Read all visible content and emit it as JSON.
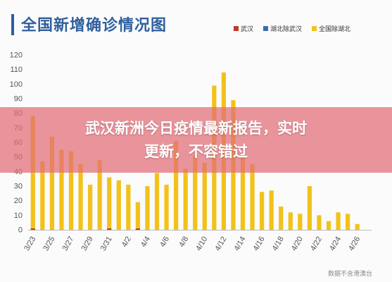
{
  "chart_title": "全国新增确诊情况图",
  "legend": [
    {
      "label": "武汉",
      "color": "#c0392b"
    },
    {
      "label": "湖北除武汉",
      "color": "#3a6fb0"
    },
    {
      "label": "全国除湖北",
      "color": "#f2c21b"
    }
  ],
  "banner": {
    "line1": "武汉新洲今日疫情最新报告，实时",
    "line2": "更新，不容错过"
  },
  "source": "数据不含港澳台",
  "chart_data": {
    "type": "bar",
    "stacked": true,
    "ylim": [
      0,
      120
    ],
    "yticks": [
      0,
      10,
      20,
      30,
      40,
      50,
      60,
      70,
      80,
      90,
      100,
      110,
      120
    ],
    "grid": false,
    "legend_position": "top-right",
    "xtick_labels": [
      "3/23",
      "3/25",
      "3/27",
      "3/29",
      "3/31",
      "4/2",
      "4/4",
      "4/6",
      "4/8",
      "4/10",
      "4/12",
      "4/14",
      "4/16",
      "4/18",
      "4/20",
      "4/22",
      "4/24",
      "4/26"
    ],
    "categories": [
      "3/23",
      "3/24",
      "3/25",
      "3/26",
      "3/27",
      "3/28",
      "3/29",
      "3/30",
      "3/31",
      "4/1",
      "4/2",
      "4/3",
      "4/4",
      "4/5",
      "4/6",
      "4/7",
      "4/8",
      "4/9",
      "4/10",
      "4/11",
      "4/12",
      "4/13",
      "4/14",
      "4/15",
      "4/16",
      "4/17",
      "4/18",
      "4/19",
      "4/20",
      "4/21",
      "4/22",
      "4/23",
      "4/24",
      "4/25",
      "4/26",
      "4/27"
    ],
    "series": [
      {
        "name": "武汉",
        "color": "#c0392b",
        "values": [
          1,
          0,
          0,
          0,
          0,
          0,
          0,
          0,
          1,
          0,
          0,
          1,
          0,
          0,
          0,
          0,
          0,
          0,
          0,
          0,
          0,
          0,
          0,
          0,
          0,
          0,
          0,
          0,
          0,
          0,
          0,
          0,
          0,
          0,
          0,
          0
        ]
      },
      {
        "name": "湖北除武汉",
        "color": "#3a6fb0",
        "values": [
          0,
          0,
          0,
          0,
          0,
          0,
          0,
          0,
          0,
          0,
          0,
          0,
          0,
          0,
          0,
          0,
          0,
          0,
          0,
          0,
          0,
          0,
          0,
          0,
          0,
          0,
          0,
          0,
          0,
          0,
          0,
          0,
          0,
          0,
          0,
          0
        ]
      },
      {
        "name": "全国除湖北",
        "color": "#f2c21b",
        "values": [
          77,
          47,
          64,
          55,
          54,
          45,
          31,
          48,
          35,
          34,
          31,
          18,
          30,
          39,
          31,
          61,
          42,
          51,
          46,
          99,
          108,
          89,
          51,
          45,
          26,
          27,
          16,
          12,
          11,
          30,
          10,
          6,
          12,
          11,
          4,
          0
        ]
      }
    ]
  }
}
